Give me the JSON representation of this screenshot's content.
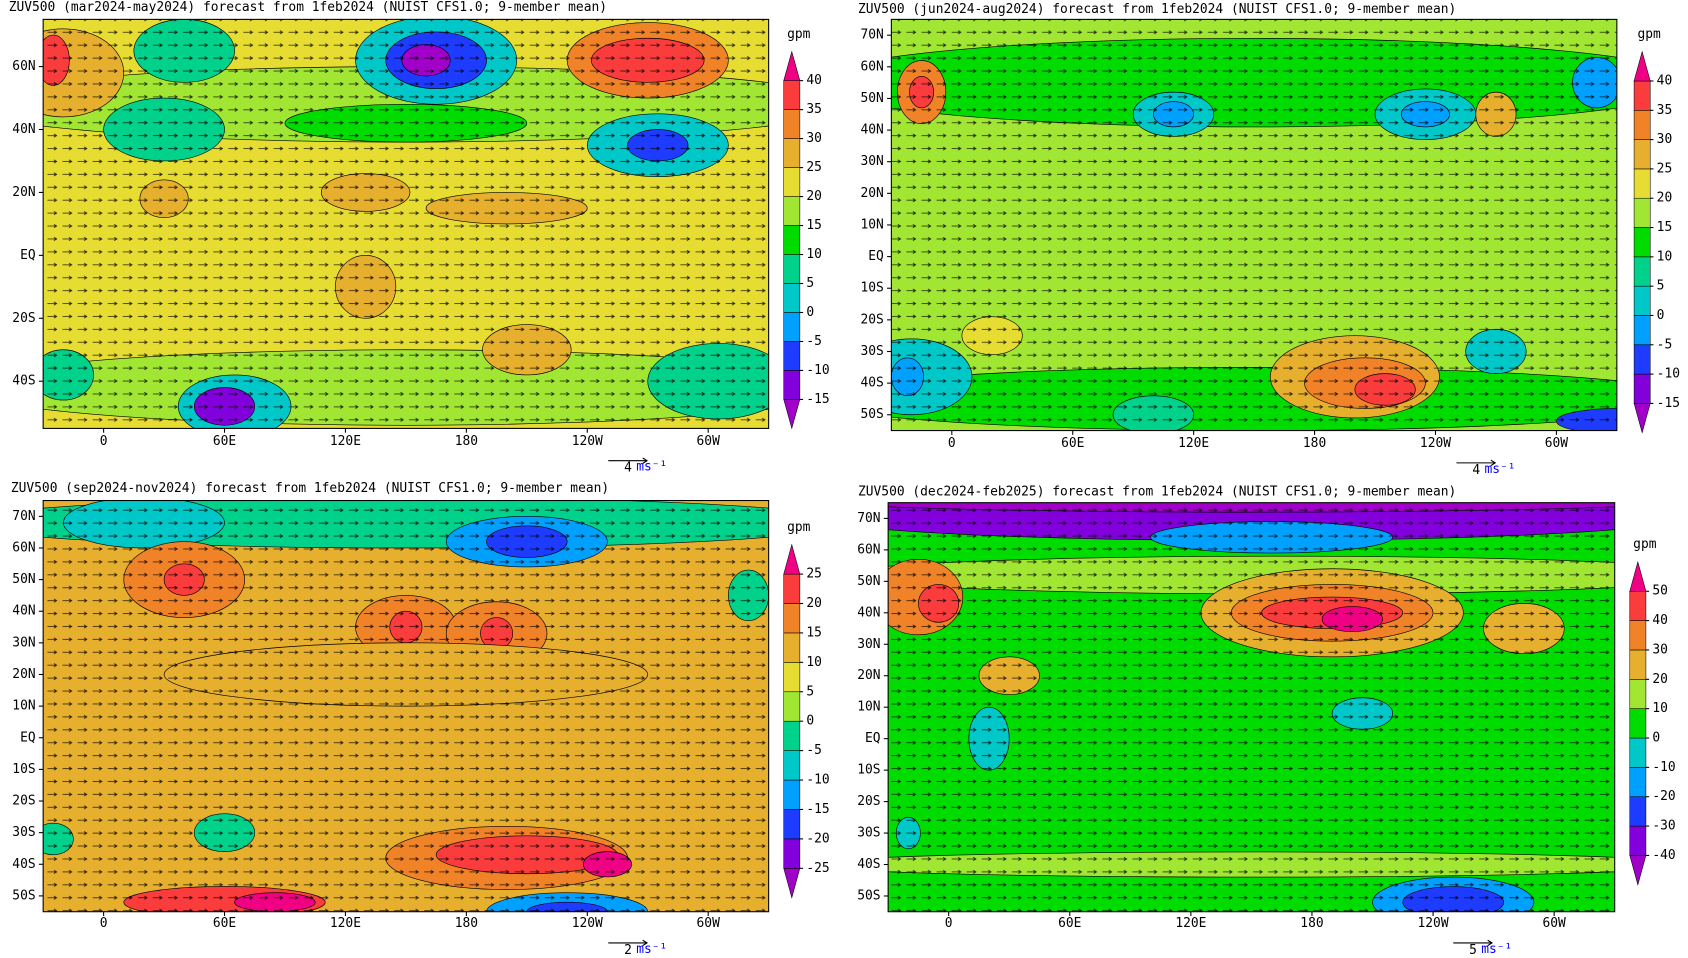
{
  "panels": [
    {
      "title": "ZUV500 (mar2024-may2024) forecast from 1feb2024 (NUIST CFS1.0; 9-member mean)",
      "xlim": [
        -30,
        330
      ],
      "ylim": [
        -55,
        75
      ],
      "xticks": [
        0,
        {
          "value": 60,
          "label": "60E"
        },
        {
          "value": 120,
          "label": "120E"
        },
        180,
        {
          "value": 240,
          "label": "120W"
        },
        {
          "value": 300,
          "label": "60W"
        }
      ],
      "yticks": [
        {
          "value": 60,
          "label": "60N"
        },
        {
          "value": 40,
          "label": "40N"
        },
        {
          "value": 20,
          "label": "20N"
        },
        {
          "value": 0,
          "label": "EQ"
        },
        {
          "value": -20,
          "label": "20S"
        },
        {
          "value": -40,
          "label": "40S"
        }
      ],
      "unit": "gpm",
      "levels": [
        -15,
        -10,
        -5,
        0,
        5,
        10,
        15,
        20,
        25,
        30,
        35,
        40
      ],
      "colors": [
        "#a000c8",
        "#8200dc",
        "#1e3cff",
        "#00a0ff",
        "#00c8c8",
        "#00d28c",
        "#00dc00",
        "#a0e632",
        "#e6dc32",
        "#e6af2d",
        "#f08228",
        "#fa3c3c",
        "#f00082"
      ],
      "ref_vector": {
        "value": 4,
        "unit": "ms⁻¹"
      }
    },
    {
      "title": "ZUV500 (jun2024-aug2024) forecast from 1feb2024 (NUIST CFS1.0; 9-member mean)",
      "xlim": [
        -30,
        330
      ],
      "ylim": [
        -55,
        75
      ],
      "xticks": [
        0,
        {
          "value": 60,
          "label": "60E"
        },
        {
          "value": 120,
          "label": "120E"
        },
        180,
        {
          "value": 240,
          "label": "120W"
        },
        {
          "value": 300,
          "label": "60W"
        }
      ],
      "yticks": [
        {
          "value": 70,
          "label": "70N"
        },
        {
          "value": 60,
          "label": "60N"
        },
        {
          "value": 50,
          "label": "50N"
        },
        {
          "value": 40,
          "label": "40N"
        },
        {
          "value": 30,
          "label": "30N"
        },
        {
          "value": 20,
          "label": "20N"
        },
        {
          "value": 10,
          "label": "10N"
        },
        {
          "value": 0,
          "label": "EQ"
        },
        {
          "value": -10,
          "label": "10S"
        },
        {
          "value": -20,
          "label": "20S"
        },
        {
          "value": -30,
          "label": "30S"
        },
        {
          "value": -40,
          "label": "40S"
        },
        {
          "value": -50,
          "label": "50S"
        }
      ],
      "unit": "gpm",
      "levels": [
        -15,
        -10,
        -5,
        0,
        5,
        10,
        15,
        20,
        25,
        30,
        35,
        40
      ],
      "colors": [
        "#a000c8",
        "#8200dc",
        "#1e3cff",
        "#00a0ff",
        "#00c8c8",
        "#00d28c",
        "#00dc00",
        "#a0e632",
        "#e6dc32",
        "#e6af2d",
        "#f08228",
        "#fa3c3c",
        "#f00082"
      ],
      "ref_vector": {
        "value": 4,
        "unit": "ms⁻¹"
      }
    },
    {
      "title": "ZUV500 (sep2024-nov2024) forecast from 1feb2024 (NUIST CFS1.0; 9-member mean)",
      "xlim": [
        -30,
        330
      ],
      "ylim": [
        -55,
        75
      ],
      "xticks": [
        0,
        {
          "value": 60,
          "label": "60E"
        },
        {
          "value": 120,
          "label": "120E"
        },
        180,
        {
          "value": 240,
          "label": "120W"
        },
        {
          "value": 300,
          "label": "60W"
        }
      ],
      "yticks": [
        {
          "value": 70,
          "label": "70N"
        },
        {
          "value": 60,
          "label": "60N"
        },
        {
          "value": 50,
          "label": "50N"
        },
        {
          "value": 40,
          "label": "40N"
        },
        {
          "value": 30,
          "label": "30N"
        },
        {
          "value": 20,
          "label": "20N"
        },
        {
          "value": 10,
          "label": "10N"
        },
        {
          "value": 0,
          "label": "EQ"
        },
        {
          "value": -10,
          "label": "10S"
        },
        {
          "value": -20,
          "label": "20S"
        },
        {
          "value": -30,
          "label": "30S"
        },
        {
          "value": -40,
          "label": "40S"
        },
        {
          "value": -50,
          "label": "50S"
        }
      ],
      "unit": "gpm",
      "levels": [
        -25,
        -20,
        -15,
        -10,
        -5,
        0,
        5,
        10,
        15,
        20,
        25
      ],
      "colors": [
        "#a000c8",
        "#8200dc",
        "#1e3cff",
        "#00a0ff",
        "#00c8c8",
        "#00d28c",
        "#a0e632",
        "#e6dc32",
        "#e6af2d",
        "#f08228",
        "#fa3c3c",
        "#f00082"
      ],
      "ref_vector": {
        "value": 2,
        "unit": "ms⁻¹"
      }
    },
    {
      "title": "ZUV500 (dec2024-feb2025) forecast from 1feb2024 (NUIST CFS1.0; 9-member mean)",
      "xlim": [
        -30,
        330
      ],
      "ylim": [
        -55,
        75
      ],
      "xticks": [
        0,
        {
          "value": 60,
          "label": "60E"
        },
        {
          "value": 120,
          "label": "120E"
        },
        180,
        {
          "value": 240,
          "label": "120W"
        },
        {
          "value": 300,
          "label": "60W"
        }
      ],
      "yticks": [
        {
          "value": 70,
          "label": "70N"
        },
        {
          "value": 60,
          "label": "60N"
        },
        {
          "value": 50,
          "label": "50N"
        },
        {
          "value": 40,
          "label": "40N"
        },
        {
          "value": 30,
          "label": "30N"
        },
        {
          "value": 20,
          "label": "20N"
        },
        {
          "value": 10,
          "label": "10N"
        },
        {
          "value": 0,
          "label": "EQ"
        },
        {
          "value": -10,
          "label": "10S"
        },
        {
          "value": -20,
          "label": "20S"
        },
        {
          "value": -30,
          "label": "30S"
        },
        {
          "value": -40,
          "label": "40S"
        },
        {
          "value": -50,
          "label": "50S"
        }
      ],
      "unit": "gpm",
      "levels": [
        -40,
        -30,
        -20,
        -10,
        0,
        10,
        20,
        30,
        40,
        50
      ],
      "colors": [
        "#a000c8",
        "#8200dc",
        "#1e3cff",
        "#00a0ff",
        "#00c8c8",
        "#00dc00",
        "#a0e632",
        "#e6af2d",
        "#f08228",
        "#fa3c3c",
        "#f00082"
      ],
      "ref_vector": {
        "value": 5,
        "unit": "ms⁻¹"
      }
    }
  ]
}
